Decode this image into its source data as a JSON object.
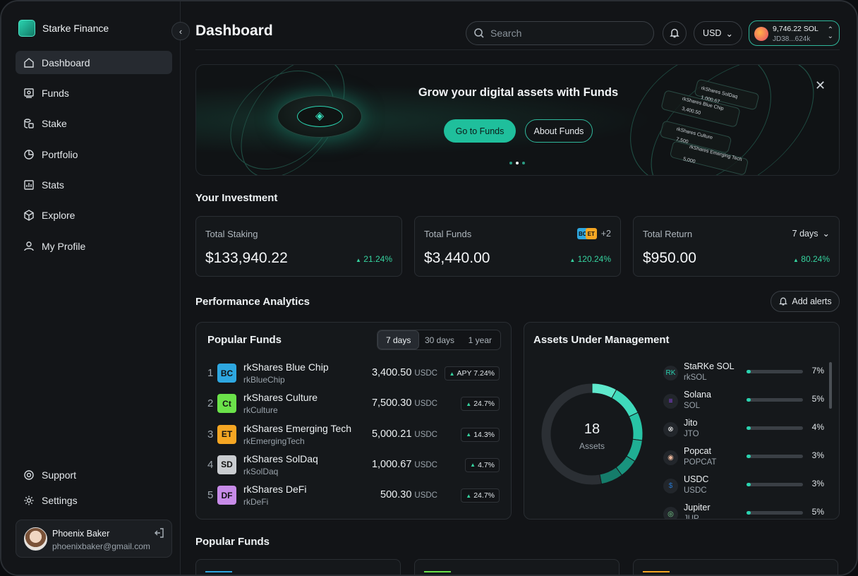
{
  "app": {
    "name": "Starke Finance"
  },
  "sidebar": {
    "items": [
      {
        "label": "Dashboard",
        "icon": "home-icon",
        "active": true
      },
      {
        "label": "Funds",
        "icon": "funds-icon"
      },
      {
        "label": "Stake",
        "icon": "stake-icon"
      },
      {
        "label": "Portfolio",
        "icon": "pie-chart-icon"
      },
      {
        "label": "Stats",
        "icon": "bar-chart-icon"
      },
      {
        "label": "Explore",
        "icon": "cube-icon"
      },
      {
        "label": "My Profile",
        "icon": "user-icon"
      }
    ],
    "bottom": [
      {
        "label": "Support",
        "icon": "lifebuoy-icon"
      },
      {
        "label": "Settings",
        "icon": "gear-icon"
      }
    ],
    "user": {
      "name": "Phoenix Baker",
      "email": "phoenixbaker@gmail.com"
    }
  },
  "header": {
    "title": "Dashboard",
    "search_placeholder": "Search",
    "currency": "USD",
    "wallet_balance": "9,746.22 SOL",
    "wallet_address": "JD38...624k"
  },
  "banner": {
    "title": "Grow your digital assets with Funds",
    "primary_label": "Go to Funds",
    "secondary_label": "About Funds",
    "deco": {
      "card1_name": "rkShares SolDaq",
      "card1_value": "1,000.67",
      "card2_name": "rkShares Blue Chip",
      "card2_value": "3,400.50",
      "card3_name": "rkShares Culture",
      "card3_value": "7,500",
      "card4_name": "rkShares Emerging Tech",
      "card4_value": "5,000"
    }
  },
  "investment": {
    "title": "Your Investment",
    "cards": [
      {
        "label": "Total Staking",
        "value": "$133,940.22",
        "change": "21.24%"
      },
      {
        "label": "Total Funds",
        "value": "$3,440.00",
        "change": "120.24%",
        "extra": "+2"
      },
      {
        "label": "Total Return",
        "value": "$950.00",
        "change": "80.24%",
        "period": "7 days"
      }
    ]
  },
  "analytics": {
    "title": "Performance Analytics",
    "alerts_label": "Add alerts"
  },
  "popular_funds": {
    "title": "Popular  Funds",
    "tabs": [
      "7 days",
      "30 days",
      "1 year"
    ],
    "rows": [
      {
        "rank": "1",
        "abbr": "BC",
        "name": "rkShares Blue Chip",
        "ticker": "rkBlueChip",
        "value": "3,400.50",
        "unit": "USDC",
        "chip": "APY 7.24%",
        "color": "#2ea7e0"
      },
      {
        "rank": "2",
        "abbr": "Ct",
        "name": "rkShares Culture",
        "ticker": "rkCulture",
        "value": "7,500.30",
        "unit": "USDC",
        "chip": "24.7%",
        "color": "#6be24a"
      },
      {
        "rank": "3",
        "abbr": "ET",
        "name": "rkShares Emerging Tech",
        "ticker": "rkEmergingTech",
        "value": "5,000.21",
        "unit": "USDC",
        "chip": "14.3%",
        "color": "#f5a623"
      },
      {
        "rank": "4",
        "abbr": "SD",
        "name": "rkShares SolDaq",
        "ticker": "rkSolDaq",
        "value": "1,000.67",
        "unit": "USDC",
        "chip": "4.7%",
        "color": "#c9ccd0"
      },
      {
        "rank": "5",
        "abbr": "DF",
        "name": "rkShares DeFi",
        "ticker": "rkDeFi",
        "value": "500.30",
        "unit": "USDC",
        "chip": "24.7%",
        "color": "#c78be8"
      }
    ]
  },
  "aum": {
    "title": "Assets Under Management",
    "count": "18",
    "count_label": "Assets",
    "assets": [
      {
        "name": "StaRKe SOL",
        "ticker": "rkSOL",
        "pct": "7%",
        "fill": 0.07,
        "icon_text": "RK",
        "color": "#2ad3b0"
      },
      {
        "name": "Solana",
        "ticker": "SOL",
        "pct": "5%",
        "fill": 0.05,
        "icon_text": "≡",
        "color": "#9945ff"
      },
      {
        "name": "Jito",
        "ticker": "JTO",
        "pct": "4%",
        "fill": 0.04,
        "icon_text": "⊗",
        "color": "#ffffff"
      },
      {
        "name": "Popcat",
        "ticker": "POPCAT",
        "pct": "3%",
        "fill": 0.03,
        "icon_text": "◉",
        "color": "#e8b59a"
      },
      {
        "name": "USDC",
        "ticker": "USDC",
        "pct": "3%",
        "fill": 0.03,
        "icon_text": "$",
        "color": "#2775ca"
      },
      {
        "name": "Jupiter",
        "ticker": "JUP",
        "pct": "5%",
        "fill": 0.05,
        "icon_text": "◎",
        "color": "#7bd88f"
      }
    ],
    "donut_colors": [
      "#5fe8cc",
      "#3fd9bb",
      "#28c4a6",
      "#1fae93",
      "#19947e",
      "#157c6a",
      "#2b2f34"
    ]
  },
  "popular_funds_section": {
    "title": "Popular Funds"
  }
}
